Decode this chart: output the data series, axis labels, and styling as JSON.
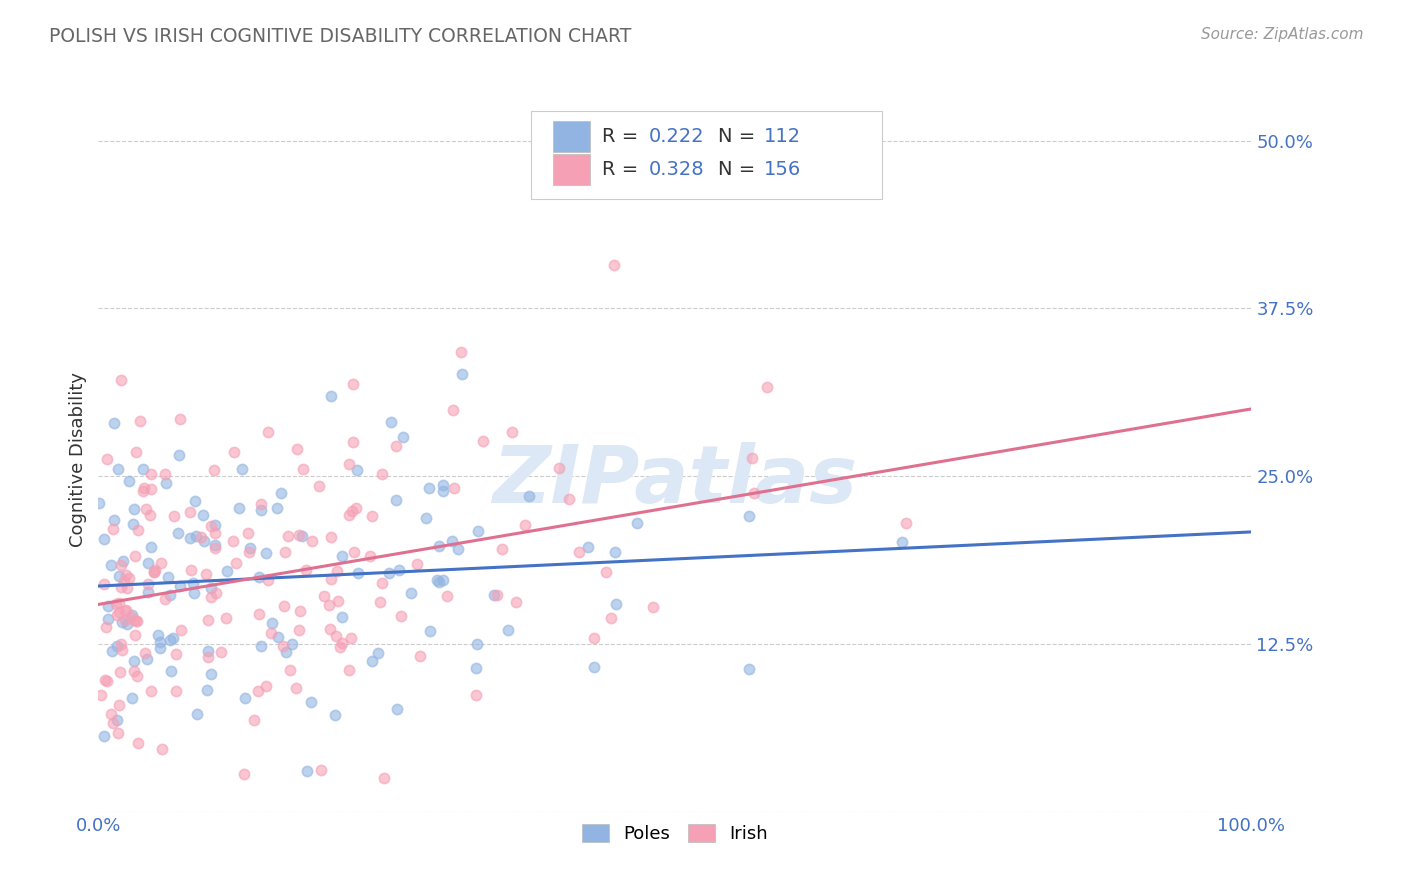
{
  "title": "POLISH VS IRISH COGNITIVE DISABILITY CORRELATION CHART",
  "source": "Source: ZipAtlas.com",
  "ylabel": "Cognitive Disability",
  "xlim": [
    0.0,
    1.0
  ],
  "ylim": [
    0.0,
    0.525
  ],
  "yticks": [
    0.0,
    0.125,
    0.25,
    0.375,
    0.5
  ],
  "ytick_labels": [
    "",
    "12.5%",
    "25.0%",
    "37.5%",
    "50.0%"
  ],
  "xtick_labels": [
    "0.0%",
    "100.0%"
  ],
  "poles_color": "#92b4e2",
  "irish_color": "#f5a0b5",
  "poles_line_color": "#4472c4",
  "irish_line_color": "#e07090",
  "poles_R": 0.222,
  "poles_N": 112,
  "irish_R": 0.328,
  "irish_N": 156,
  "background_color": "#ffffff",
  "grid_color": "#cccccc",
  "title_color": "#666666",
  "text_dark": "#333333",
  "val_color": "#4472c4",
  "watermark_color": "#dce8f5",
  "poles_seed": 12,
  "irish_seed": 77
}
